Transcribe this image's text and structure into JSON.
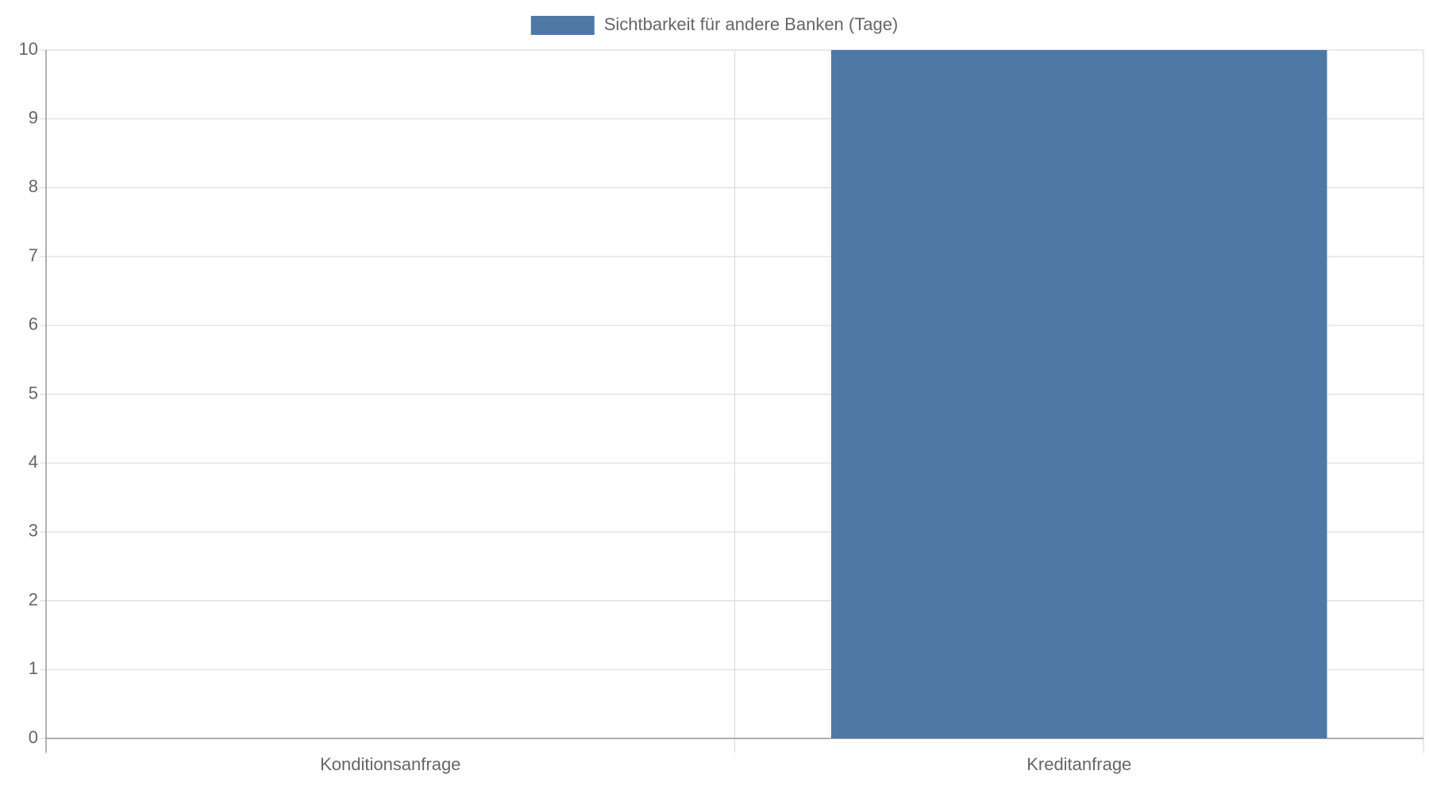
{
  "chart_data": {
    "type": "bar",
    "categories": [
      "Konditionsanfrage",
      "Kreditanfrage"
    ],
    "series": [
      {
        "name": "Sichtbarkeit für andere Banken (Tage)",
        "color": "#4e78a5",
        "values": [
          0,
          10
        ]
      }
    ],
    "ylim": [
      0,
      10
    ],
    "yticks": [
      0,
      1,
      2,
      3,
      4,
      5,
      6,
      7,
      8,
      9,
      10
    ],
    "grid": true,
    "legend": "top"
  }
}
